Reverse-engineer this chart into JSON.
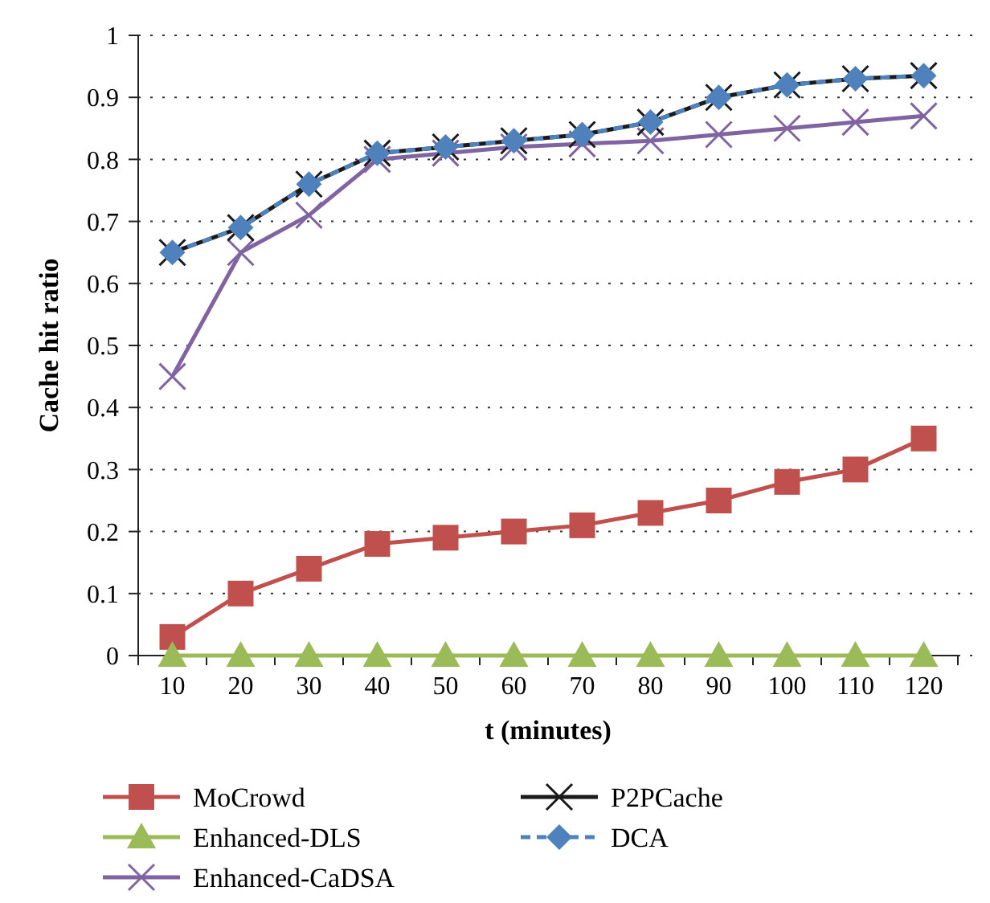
{
  "chart_data": {
    "type": "line",
    "xlabel": "t (minutes)",
    "ylabel": "Cache hit ratio",
    "categories": [
      "10",
      "20",
      "30",
      "40",
      "50",
      "60",
      "70",
      "80",
      "90",
      "100",
      "110",
      "120"
    ],
    "ylim": [
      0,
      1
    ],
    "yticks": [
      0,
      {
        "value": 0.1,
        "label": "0.1"
      },
      {
        "value": 0.2,
        "label": "0.2"
      },
      {
        "value": 0.3,
        "label": "0.3"
      },
      {
        "value": 0.4,
        "label": "0.4"
      },
      {
        "value": 0.5,
        "label": "0.5"
      },
      {
        "value": 0.6,
        "label": "0.6"
      },
      {
        "value": 0.7,
        "label": "0.7"
      },
      {
        "value": 0.8,
        "label": "0.8"
      },
      {
        "value": 0.9,
        "label": "0.9"
      },
      1
    ],
    "grid": "y",
    "legend": "bottom",
    "series": [
      {
        "name": "MoCrowd",
        "color": "#c0504d",
        "marker": "square",
        "values": [
          0.03,
          0.1,
          0.14,
          0.18,
          0.19,
          0.2,
          0.21,
          0.23,
          0.25,
          0.28,
          0.3,
          0.35
        ]
      },
      {
        "name": "Enhanced-DLS",
        "color": "#9bbb59",
        "marker": "triangle",
        "values": [
          0,
          0,
          0,
          0,
          0,
          0,
          0,
          0,
          0,
          0,
          0,
          0
        ]
      },
      {
        "name": "Enhanced-CaDSA",
        "color": "#8064a2",
        "marker": "cross",
        "values": [
          0.45,
          0.65,
          0.71,
          0.8,
          0.81,
          0.82,
          0.825,
          0.83,
          0.84,
          0.85,
          0.86,
          0.87
        ]
      },
      {
        "name": "P2PCache",
        "color": "#1a1a1a",
        "marker": "cross",
        "values": [
          0.65,
          0.69,
          0.76,
          0.81,
          0.82,
          0.83,
          0.84,
          0.86,
          0.9,
          0.92,
          0.93,
          0.935
        ]
      },
      {
        "name": "DCA",
        "color": "#4f81bd",
        "marker": "diamond",
        "line_style": "dashed",
        "values": [
          0.65,
          0.69,
          0.76,
          0.81,
          0.82,
          0.83,
          0.84,
          0.86,
          0.9,
          0.92,
          0.93,
          0.935
        ]
      }
    ]
  }
}
